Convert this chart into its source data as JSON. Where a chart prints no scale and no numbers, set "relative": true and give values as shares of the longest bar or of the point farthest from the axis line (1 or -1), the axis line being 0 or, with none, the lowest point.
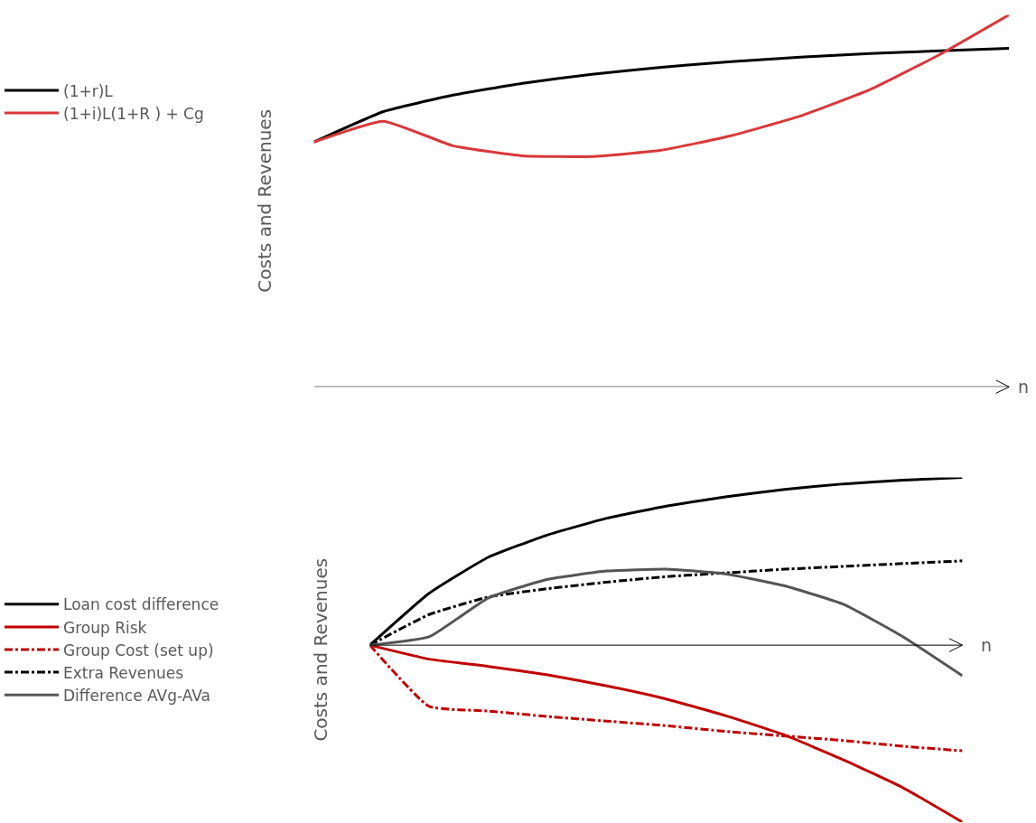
{
  "chart_data": [
    {
      "type": "line",
      "relative": true,
      "xlabel": "n",
      "ylabel": "Costs and Revenues",
      "legend": "left",
      "marker": "none",
      "categories": [
        null,
        null,
        null,
        null,
        null,
        null,
        null,
        null,
        null,
        null,
        null
      ],
      "series": [
        {
          "name": "(1+r)L",
          "color": "#000000",
          "line_style": "solid",
          "values": [
            0.658,
            0.74,
            0.784,
            0.816,
            0.84,
            0.859,
            0.874,
            0.886,
            0.896,
            0.903,
            0.91
          ]
        },
        {
          "name": "(1+i)L(1+R ) + Cg",
          "color": "#d9383a",
          "line_style": "solid",
          "values": [
            0.658,
            0.714,
            0.648,
            0.621,
            0.619,
            0.636,
            0.675,
            0.728,
            0.799,
            0.893,
            1
          ]
        }
      ]
    },
    {
      "type": "line",
      "relative": true,
      "xlabel": "n",
      "ylabel": "Costs and Revenues",
      "legend": "left",
      "marker": "none",
      "categories": [
        null,
        null,
        null,
        null,
        null,
        null,
        null,
        null,
        null,
        null,
        null
      ],
      "series": [
        {
          "name": "Loan cost difference",
          "color": "#000000",
          "line_style": "solid",
          "values": [
            0,
            0.293,
            0.497,
            0.623,
            0.717,
            0.785,
            0.838,
            0.88,
            0.911,
            0.932,
            0.948
          ]
        },
        {
          "name": "Group Risk",
          "color": "#c00000",
          "line_style": "solid",
          "values": [
            0,
            -0.079,
            -0.12,
            -0.168,
            -0.23,
            -0.304,
            -0.398,
            -0.508,
            -0.649,
            -0.806,
            -1
          ]
        },
        {
          "name": "Group Cost (set up)",
          "color": "#c00000",
          "line_style": "dashdot",
          "values": [
            0,
            -0.346,
            -0.372,
            -0.403,
            -0.429,
            -0.455,
            -0.487,
            -0.513,
            -0.539,
            -0.571,
            -0.597
          ]
        },
        {
          "name": "Extra Revenues",
          "color": "#000000",
          "line_style": "dashdot",
          "values": [
            0,
            0.173,
            0.272,
            0.319,
            0.356,
            0.387,
            0.408,
            0.429,
            0.445,
            0.461,
            0.476
          ]
        },
        {
          "name": "Difference AVg-AVa",
          "color": "#555555",
          "line_style": "solid",
          "values": [
            0,
            0.047,
            0.267,
            0.372,
            0.419,
            0.429,
            0.403,
            0.335,
            0.23,
            0.047,
            -0.173
          ]
        }
      ]
    }
  ]
}
